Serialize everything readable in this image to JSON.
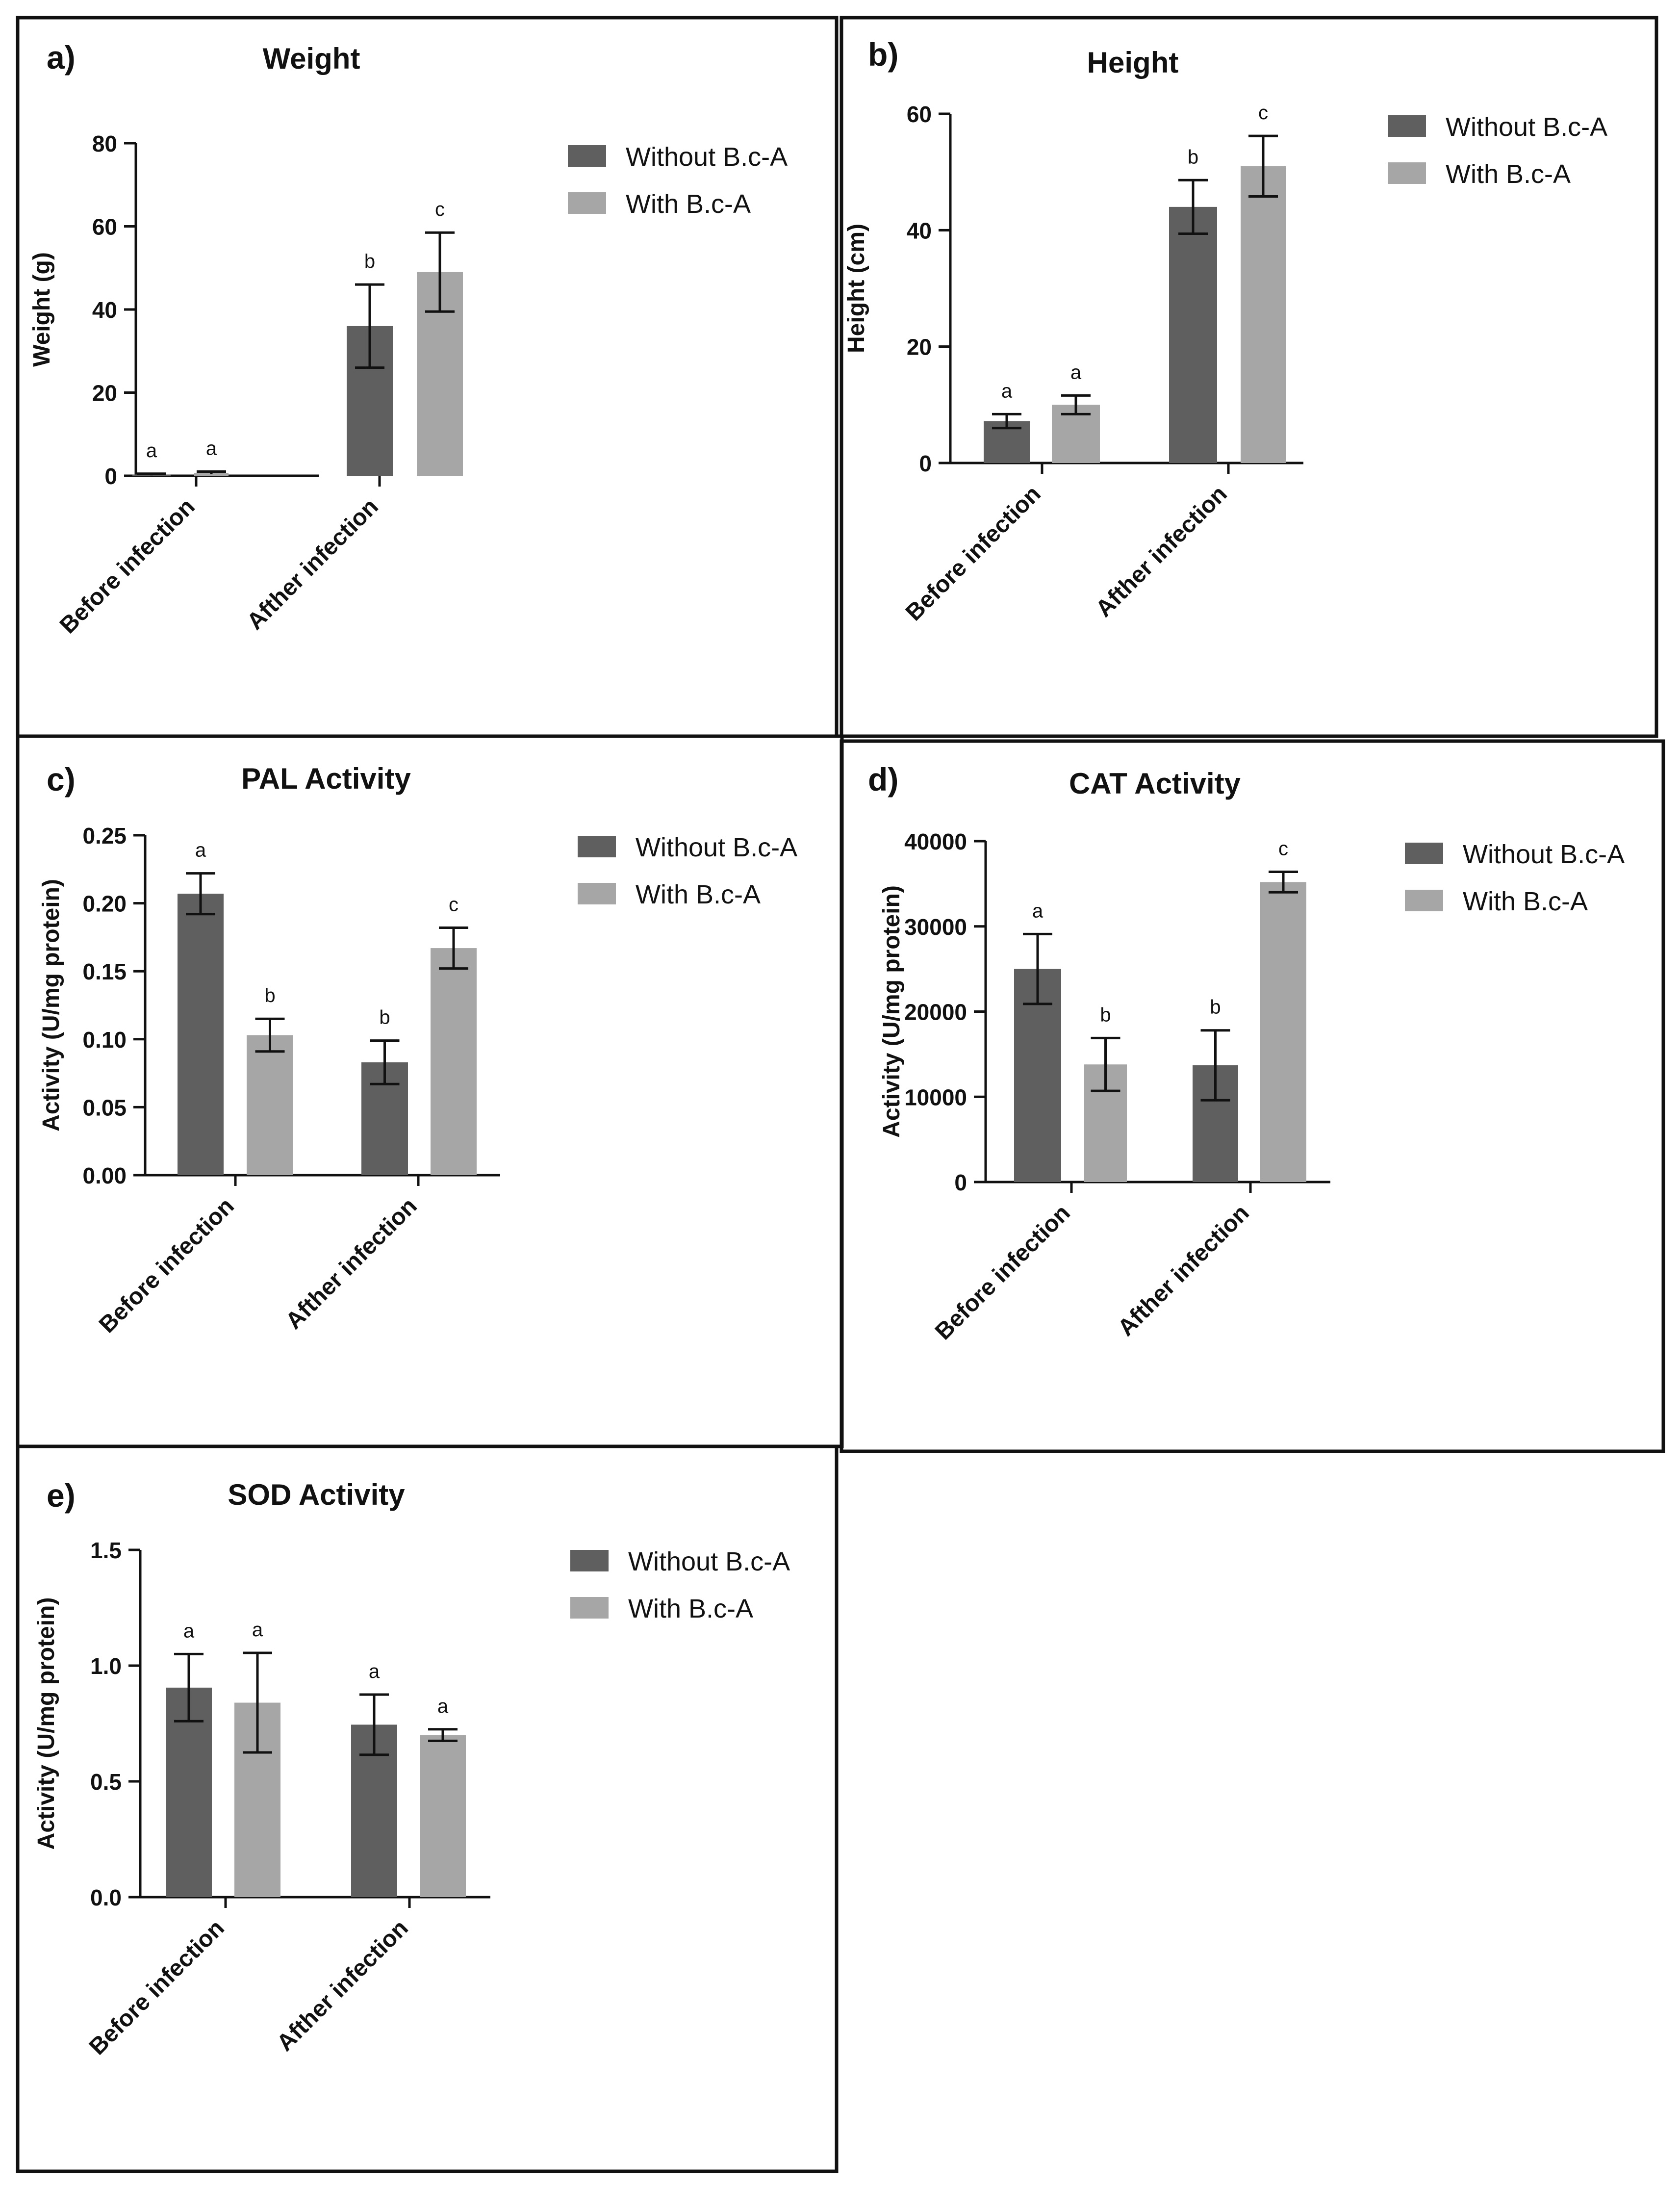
{
  "colors": {
    "without": "#5f5f5f",
    "with": "#a6a6a6",
    "frame": "#111111",
    "axis": "#111111",
    "text": "#111111"
  },
  "chart_data": [
    {
      "id": "a",
      "type": "bar",
      "panel_label": "a)",
      "title": "Weight",
      "xlabel": "",
      "ylabel": "Weight (g)",
      "ylim": [
        0,
        80
      ],
      "yticks": [
        0,
        20,
        40,
        60,
        80
      ],
      "ytick_labels": [
        "0",
        "20",
        "40",
        "60",
        "80"
      ],
      "categories": [
        "Before infection",
        "Afther infection"
      ],
      "series": [
        {
          "name": "Without B.c-A",
          "color": "#5f5f5f",
          "values": [
            0.3,
            36
          ],
          "errors": [
            0.2,
            10
          ],
          "letters": [
            "a",
            "b"
          ]
        },
        {
          "name": "With B.c-A",
          "color": "#a6a6a6",
          "values": [
            0.7,
            49
          ],
          "errors": [
            0.3,
            9.5
          ],
          "letters": [
            "a",
            "c"
          ]
        }
      ],
      "legend_position": "top-right"
    },
    {
      "id": "b",
      "type": "bar",
      "panel_label": "b)",
      "title": "Height",
      "xlabel": "",
      "ylabel": "Height (cm)",
      "ylim": [
        0,
        60
      ],
      "yticks": [
        0,
        20,
        40,
        60
      ],
      "ytick_labels": [
        "0",
        "20",
        "40",
        "60"
      ],
      "categories": [
        "Before infection",
        "Afther infection"
      ],
      "series": [
        {
          "name": "Without B.c-A",
          "color": "#5f5f5f",
          "values": [
            7.2,
            44
          ],
          "errors": [
            1.2,
            4.6
          ],
          "letters": [
            "a",
            "b"
          ]
        },
        {
          "name": "With B.c-A",
          "color": "#a6a6a6",
          "values": [
            10,
            51
          ],
          "errors": [
            1.6,
            5.2
          ],
          "letters": [
            "a",
            "c"
          ]
        }
      ],
      "legend_position": "top-right"
    },
    {
      "id": "c",
      "type": "bar",
      "panel_label": "c)",
      "title": "PAL Activity",
      "xlabel": "",
      "ylabel": "Activity (U/mg protein)",
      "ylim": [
        0,
        0.25
      ],
      "yticks": [
        0,
        0.05,
        0.1,
        0.15,
        0.2,
        0.25
      ],
      "ytick_labels": [
        "0.00",
        "0.05",
        "0.10",
        "0.15",
        "0.20",
        "0.25"
      ],
      "categories": [
        "Before infection",
        "Afther infection"
      ],
      "series": [
        {
          "name": "Without B.c-A",
          "color": "#5f5f5f",
          "values": [
            0.207,
            0.083
          ],
          "errors": [
            0.015,
            0.016
          ],
          "letters": [
            "a",
            "b"
          ]
        },
        {
          "name": "With B.c-A",
          "color": "#a6a6a6",
          "values": [
            0.103,
            0.167
          ],
          "errors": [
            0.012,
            0.015
          ],
          "letters": [
            "b",
            "c"
          ]
        }
      ],
      "legend_position": "top-right"
    },
    {
      "id": "d",
      "type": "bar",
      "panel_label": "d)",
      "title": "CAT Activity",
      "xlabel": "",
      "ylabel": "Activity (U/mg protein)",
      "ylim": [
        0,
        40000
      ],
      "yticks": [
        0,
        10000,
        20000,
        30000,
        40000
      ],
      "ytick_labels": [
        "0",
        "10000",
        "20000",
        "30000",
        "40000"
      ],
      "categories": [
        "Before infection",
        "Afther infection"
      ],
      "series": [
        {
          "name": "Without B.c-A",
          "color": "#5f5f5f",
          "values": [
            25000,
            13700
          ],
          "errors": [
            4100,
            4100
          ],
          "letters": [
            "a",
            "b"
          ]
        },
        {
          "name": "With B.c-A",
          "color": "#a6a6a6",
          "values": [
            13800,
            35200
          ],
          "errors": [
            3100,
            1200
          ],
          "letters": [
            "b",
            "c"
          ]
        }
      ],
      "legend_position": "top-right"
    },
    {
      "id": "e",
      "type": "bar",
      "panel_label": "e)",
      "title": "SOD Activity",
      "xlabel": "",
      "ylabel": "Activity (U/mg protein)",
      "ylim": [
        0,
        1.5
      ],
      "yticks": [
        0,
        0.5,
        1.0,
        1.5
      ],
      "ytick_labels": [
        "0.0",
        "0.5",
        "1.0",
        "1.5"
      ],
      "categories": [
        "Before infection",
        "Afther infection"
      ],
      "series": [
        {
          "name": "Without B.c-A",
          "color": "#5f5f5f",
          "values": [
            0.905,
            0.745
          ],
          "errors": [
            0.145,
            0.13
          ],
          "letters": [
            "a",
            "a"
          ]
        },
        {
          "name": "With B.c-A",
          "color": "#a6a6a6",
          "values": [
            0.84,
            0.7
          ],
          "errors": [
            0.215,
            0.025
          ],
          "letters": [
            "a",
            "a"
          ]
        }
      ],
      "legend_position": "top-right"
    }
  ]
}
